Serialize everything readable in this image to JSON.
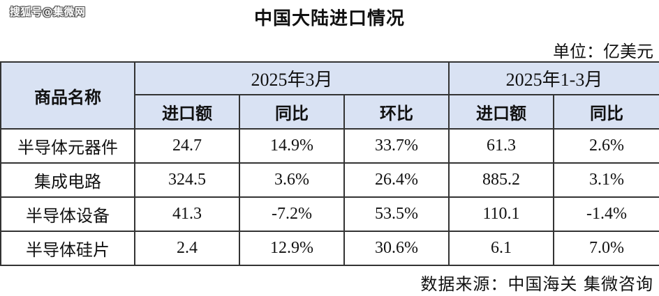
{
  "watermark": "搜狐号@集微网",
  "title": "中国大陆进口情况",
  "unit": "单位：亿美元",
  "source": "数据来源：中国海关 集微咨询",
  "table": {
    "name_header": "商品名称",
    "periods": [
      "2025年3月",
      "2025年1-3月"
    ],
    "sub_headers": [
      "进口额",
      "同比",
      "环比",
      "进口额",
      "同比"
    ],
    "rows": [
      {
        "name": "半导体元器件",
        "values": [
          "24.7",
          "14.9%",
          "33.7%",
          "61.3",
          "2.6%"
        ]
      },
      {
        "name": "集成电路",
        "values": [
          "324.5",
          "3.6%",
          "26.4%",
          "885.2",
          "3.1%"
        ]
      },
      {
        "name": "半导体设备",
        "values": [
          "41.3",
          "-7.2%",
          "53.5%",
          "110.1",
          "-1.4%"
        ]
      },
      {
        "name": "半导体硅片",
        "values": [
          "2.4",
          "12.9%",
          "30.6%",
          "6.1",
          "7.0%"
        ]
      }
    ]
  }
}
